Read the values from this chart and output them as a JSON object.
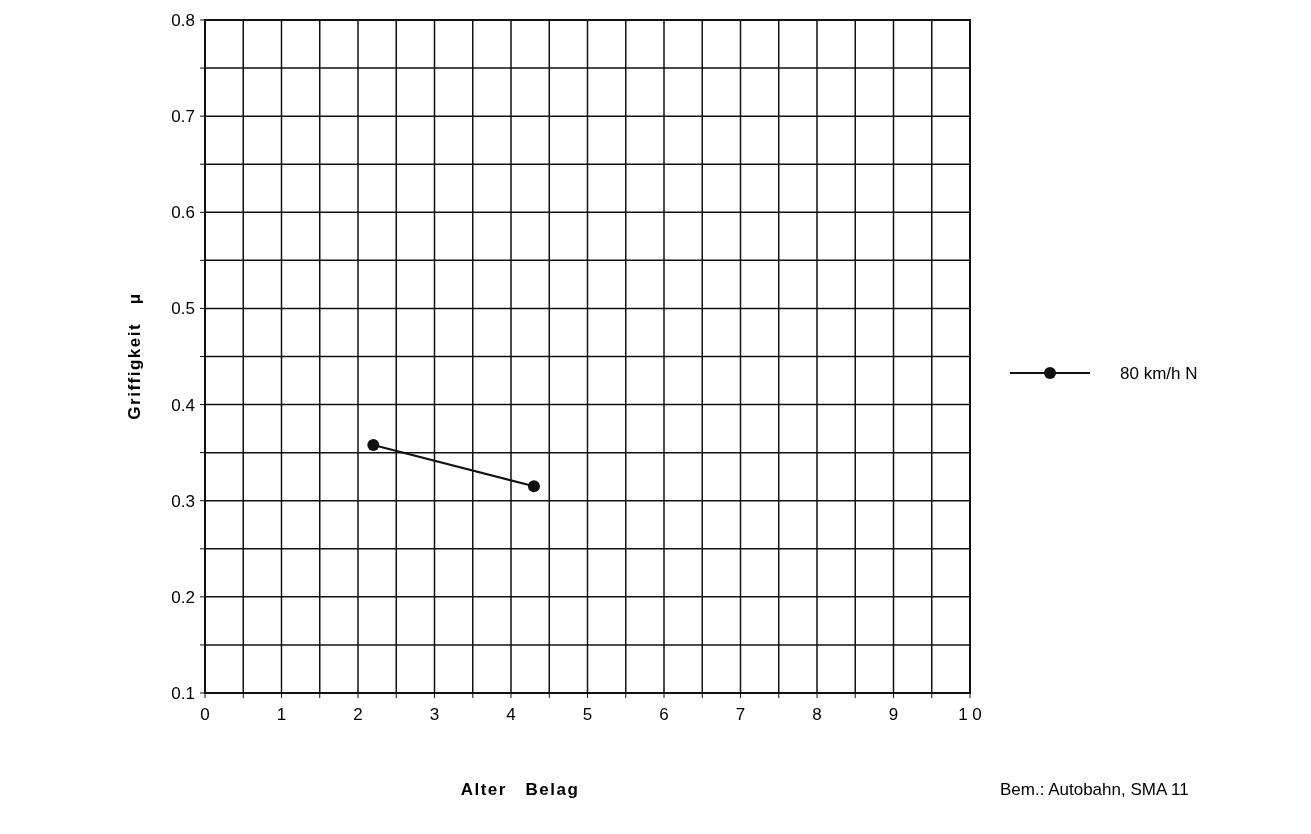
{
  "chart_data": {
    "type": "line",
    "xlabel": "Alter   Belag",
    "ylabel": "Griffigkeit   μ",
    "annotations": [
      "Bem.: Autobahn, SMA 11"
    ],
    "x": [
      2.2,
      4.3
    ],
    "series": [
      {
        "name": "80 km/h N",
        "color": "#111111",
        "values": [
          0.358,
          0.315
        ]
      }
    ],
    "xlim": [
      0,
      10
    ],
    "ylim": [
      0.1,
      0.8
    ],
    "xticks": [
      0,
      {
        "value": 0.5,
        "label": null
      },
      1,
      {
        "value": 1.5,
        "label": null
      },
      2,
      {
        "value": 2.5,
        "label": null
      },
      3,
      {
        "value": 3.5,
        "label": null
      },
      4,
      {
        "value": 4.5,
        "label": null
      },
      5,
      {
        "value": 5.5,
        "label": null
      },
      6,
      {
        "value": 6.5,
        "label": null
      },
      7,
      {
        "value": 7.5,
        "label": null
      },
      8,
      {
        "value": 8.5,
        "label": null
      },
      9,
      {
        "value": 9.5,
        "label": null
      },
      {
        "value": 10,
        "label": "1 0"
      }
    ],
    "yticks": [
      0.1,
      {
        "value": 0.15,
        "label": null
      },
      0.2,
      {
        "value": 0.25,
        "label": null
      },
      0.3,
      {
        "value": 0.35,
        "label": null
      },
      0.4,
      {
        "value": 0.45,
        "label": null
      },
      0.5,
      {
        "value": 0.55,
        "label": null
      },
      0.6,
      {
        "value": 0.65,
        "label": null
      },
      0.7,
      {
        "value": 0.75,
        "label": null
      },
      0.8
    ],
    "grid": true,
    "legend": "right",
    "marker": "circle",
    "line_style": "solid"
  }
}
